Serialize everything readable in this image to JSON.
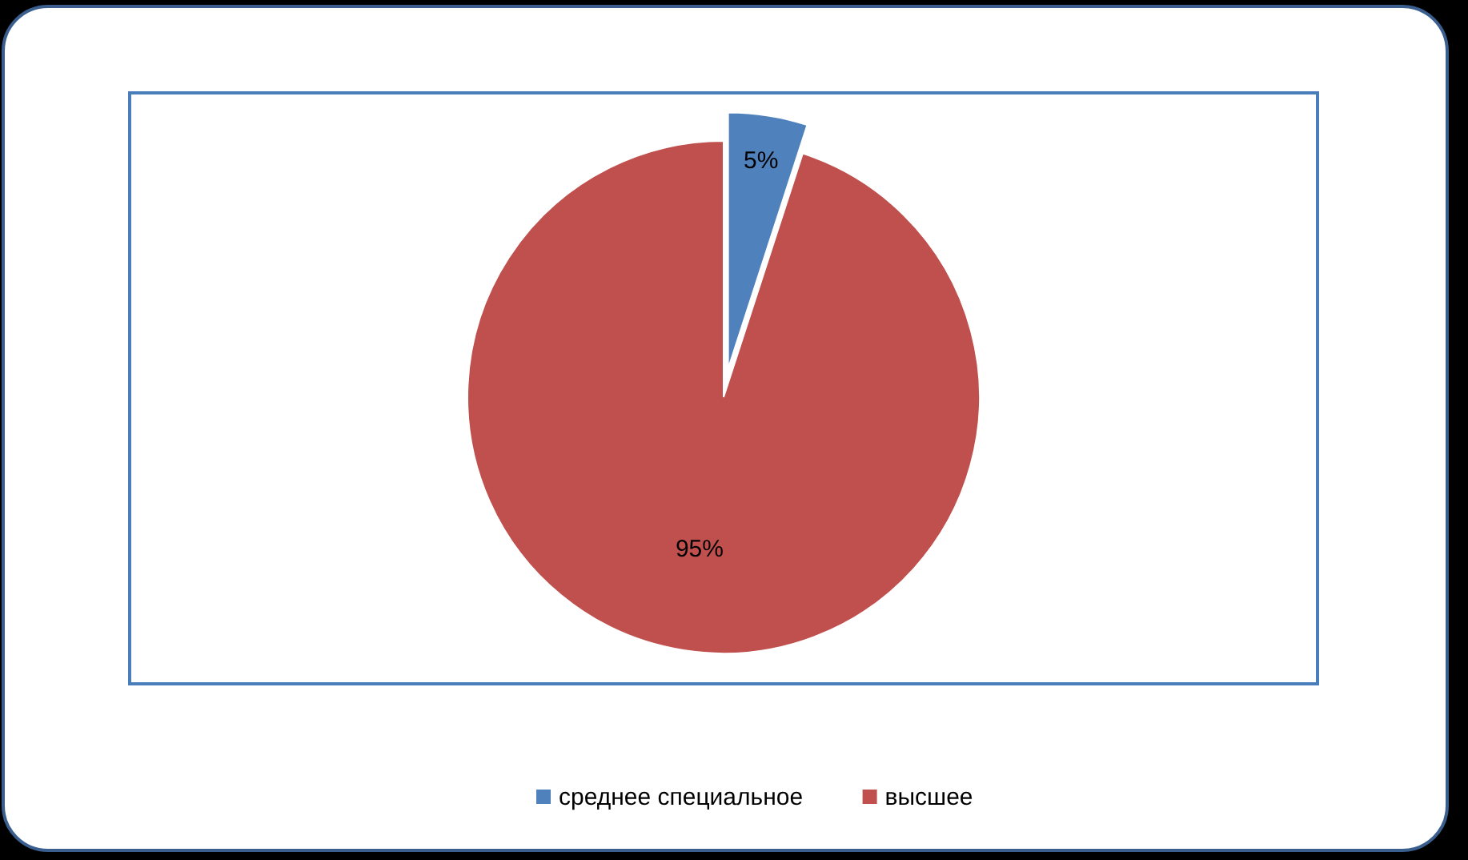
{
  "chart_data": {
    "type": "pie",
    "categories": [
      "среднее специальное",
      "высшее"
    ],
    "values": [
      5,
      95
    ],
    "colors": [
      "#4f81bd",
      "#c0504d"
    ],
    "value_labels": [
      "5%",
      "95%"
    ],
    "legend": "bottom"
  }
}
